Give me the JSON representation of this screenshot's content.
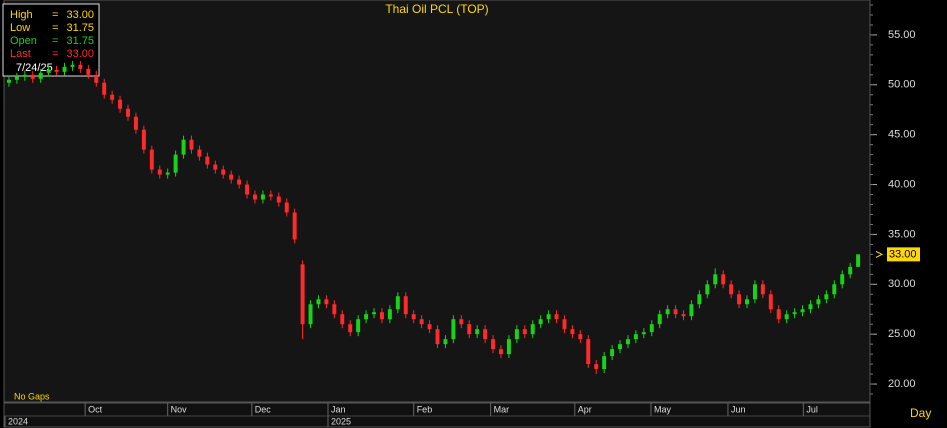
{
  "chart_data": {
    "type": "candlestick",
    "title": "Thai Oil PCL (TOP)",
    "info_box": {
      "rows": [
        {
          "label": "High",
          "eq": "=",
          "value": "33.00"
        },
        {
          "label": "Low",
          "eq": "=",
          "value": "31.75"
        },
        {
          "label": "Open",
          "eq": "=",
          "value": "31.75"
        },
        {
          "label": "Last",
          "eq": "=",
          "value": "33.00"
        }
      ],
      "date": "7/24/25"
    },
    "note": "No Gaps",
    "interval": "Day",
    "up_color": "#19d219",
    "down_color": "#ff2a2a",
    "open": [
      50.2,
      50.5,
      50.8,
      51.0,
      50.6,
      51.2,
      51.5,
      51.3,
      51.8,
      52.0,
      51.6,
      51.0,
      50.2,
      49.0,
      48.5,
      47.6,
      46.8,
      45.5,
      43.5,
      41.5,
      41.0,
      41.2,
      43.0,
      44.5,
      43.5,
      42.8,
      42.0,
      41.5,
      41.0,
      40.5,
      40.0,
      39.0,
      38.5,
      39.0,
      38.8,
      38.2,
      37.2,
      32.0,
      26.0,
      28.0,
      28.5,
      28.0,
      27.0,
      26.0,
      25.2,
      26.5,
      27.0,
      27.2,
      26.5,
      27.5,
      28.8,
      27.0,
      26.5,
      26.0,
      25.5,
      24.0,
      24.5,
      26.5,
      26.0,
      25.0,
      25.5,
      24.5,
      23.5,
      23.0,
      24.5,
      25.5,
      25.0,
      26.0,
      26.5,
      27.0,
      26.5,
      25.5,
      25.0,
      24.5,
      22.0,
      21.5,
      22.8,
      23.5,
      24.0,
      24.5,
      25.0,
      25.2,
      26.0,
      27.0,
      27.5,
      27.0,
      26.8,
      28.0,
      29.0,
      30.0,
      31.0,
      30.0,
      29.0,
      28.0,
      28.5,
      30.0,
      29.0,
      27.5,
      26.5,
      27.0,
      27.2,
      27.5,
      28.0,
      28.5,
      29.0,
      30.0,
      31.0,
      31.75
    ],
    "high": [
      50.9,
      51.2,
      51.4,
      51.4,
      51.6,
      51.9,
      51.9,
      52.2,
      52.4,
      52.4,
      52.0,
      51.4,
      50.6,
      49.4,
      48.9,
      48.0,
      47.2,
      45.9,
      43.9,
      41.9,
      41.6,
      43.4,
      44.9,
      44.9,
      43.9,
      43.2,
      42.4,
      41.9,
      41.4,
      40.9,
      40.4,
      39.4,
      39.4,
      39.4,
      39.2,
      38.6,
      37.6,
      32.4,
      28.4,
      28.9,
      28.9,
      28.4,
      27.4,
      26.4,
      26.9,
      27.4,
      27.6,
      27.6,
      27.9,
      29.2,
      29.2,
      27.4,
      26.9,
      26.4,
      25.9,
      24.9,
      26.9,
      26.9,
      26.4,
      25.9,
      25.9,
      24.9,
      23.9,
      24.9,
      25.9,
      25.9,
      26.4,
      26.9,
      27.4,
      27.4,
      26.9,
      25.9,
      25.4,
      24.9,
      22.4,
      23.2,
      23.9,
      24.4,
      24.9,
      25.4,
      25.6,
      26.4,
      27.4,
      27.9,
      27.9,
      27.4,
      28.4,
      29.4,
      30.4,
      31.6,
      31.4,
      30.4,
      29.4,
      28.9,
      30.4,
      30.4,
      29.4,
      27.9,
      27.4,
      27.6,
      27.9,
      28.4,
      28.9,
      29.4,
      30.4,
      31.4,
      32.15,
      33.0
    ],
    "low": [
      49.8,
      50.1,
      50.4,
      50.2,
      50.2,
      50.8,
      50.9,
      50.9,
      51.4,
      51.2,
      50.6,
      49.8,
      48.6,
      48.1,
      47.2,
      46.4,
      45.1,
      43.1,
      41.1,
      40.6,
      40.6,
      40.8,
      42.6,
      43.1,
      42.4,
      41.6,
      41.1,
      40.6,
      40.1,
      39.6,
      38.6,
      38.1,
      38.1,
      38.4,
      37.8,
      36.8,
      34.1,
      24.5,
      25.6,
      27.6,
      27.6,
      26.6,
      25.6,
      24.8,
      24.8,
      26.1,
      26.6,
      26.1,
      26.1,
      27.1,
      26.6,
      26.1,
      25.6,
      25.1,
      23.6,
      23.6,
      24.1,
      25.6,
      24.6,
      24.6,
      24.1,
      23.1,
      22.6,
      22.6,
      24.1,
      24.6,
      24.6,
      25.6,
      26.1,
      26.1,
      25.1,
      24.6,
      24.1,
      21.6,
      21.0,
      21.1,
      22.4,
      23.1,
      23.6,
      24.1,
      24.6,
      24.8,
      25.6,
      26.6,
      26.6,
      26.4,
      26.4,
      27.6,
      28.6,
      29.6,
      29.6,
      28.6,
      27.6,
      27.6,
      28.1,
      28.6,
      27.1,
      26.1,
      26.1,
      26.6,
      26.8,
      27.1,
      27.6,
      28.1,
      28.6,
      29.6,
      30.6,
      31.75
    ],
    "close": [
      50.5,
      50.8,
      51.0,
      50.6,
      51.2,
      51.5,
      51.3,
      51.8,
      52.0,
      51.6,
      51.0,
      50.2,
      49.0,
      48.5,
      47.6,
      46.8,
      45.5,
      43.5,
      41.5,
      41.0,
      41.2,
      43.0,
      44.5,
      43.5,
      42.8,
      42.0,
      41.5,
      41.0,
      40.5,
      40.0,
      39.0,
      38.5,
      39.0,
      38.8,
      38.2,
      37.2,
      34.5,
      26.0,
      28.0,
      28.5,
      28.0,
      27.0,
      26.0,
      25.2,
      26.5,
      27.0,
      27.2,
      26.5,
      27.5,
      28.8,
      27.0,
      26.5,
      26.0,
      25.5,
      24.0,
      24.5,
      26.5,
      26.0,
      25.0,
      25.5,
      24.5,
      23.5,
      23.0,
      24.5,
      25.5,
      25.0,
      26.0,
      26.5,
      27.0,
      26.5,
      25.5,
      25.0,
      24.5,
      22.0,
      21.5,
      22.8,
      23.5,
      24.0,
      24.5,
      25.0,
      25.2,
      26.0,
      27.0,
      27.5,
      27.0,
      26.8,
      28.0,
      29.0,
      30.0,
      31.0,
      30.0,
      29.0,
      28.0,
      28.5,
      30.0,
      29.0,
      27.5,
      26.5,
      27.0,
      27.2,
      27.5,
      28.0,
      28.5,
      29.0,
      30.0,
      31.0,
      31.75,
      33.0
    ],
    "xlim": [
      -0.5,
      108.5
    ],
    "xticks": [
      {
        "value": 9.6,
        "label": "Oct"
      },
      {
        "value": 20.0,
        "label": "Nov"
      },
      {
        "value": 30.6,
        "label": "Dec"
      },
      {
        "value": 40.2,
        "label": "Jan"
      },
      {
        "value": 51.0,
        "label": "Feb"
      },
      {
        "value": 60.7,
        "label": "Mar"
      },
      {
        "value": 71.3,
        "label": "Apr"
      },
      {
        "value": 80.9,
        "label": "May"
      },
      {
        "value": 90.6,
        "label": "Jun"
      },
      {
        "value": 100.1,
        "label": "Jul"
      }
    ],
    "year_ticks": [
      {
        "value": -0.5,
        "label": "2024"
      },
      {
        "value": 40.2,
        "label": "2025"
      }
    ],
    "ylim": [
      18.2,
      58.5
    ],
    "yticks": [
      {
        "value": 20,
        "label": "20.00"
      },
      {
        "value": 25,
        "label": "25.00"
      },
      {
        "value": 30,
        "label": "30.00"
      },
      {
        "value": 35,
        "label": "35.00"
      },
      {
        "value": 40,
        "label": "40.00"
      },
      {
        "value": 45,
        "label": "45.00"
      },
      {
        "value": 50,
        "label": "50.00"
      },
      {
        "value": 55,
        "label": "55.00"
      }
    ],
    "last_price": {
      "value": 33,
      "label": "33.00"
    }
  }
}
